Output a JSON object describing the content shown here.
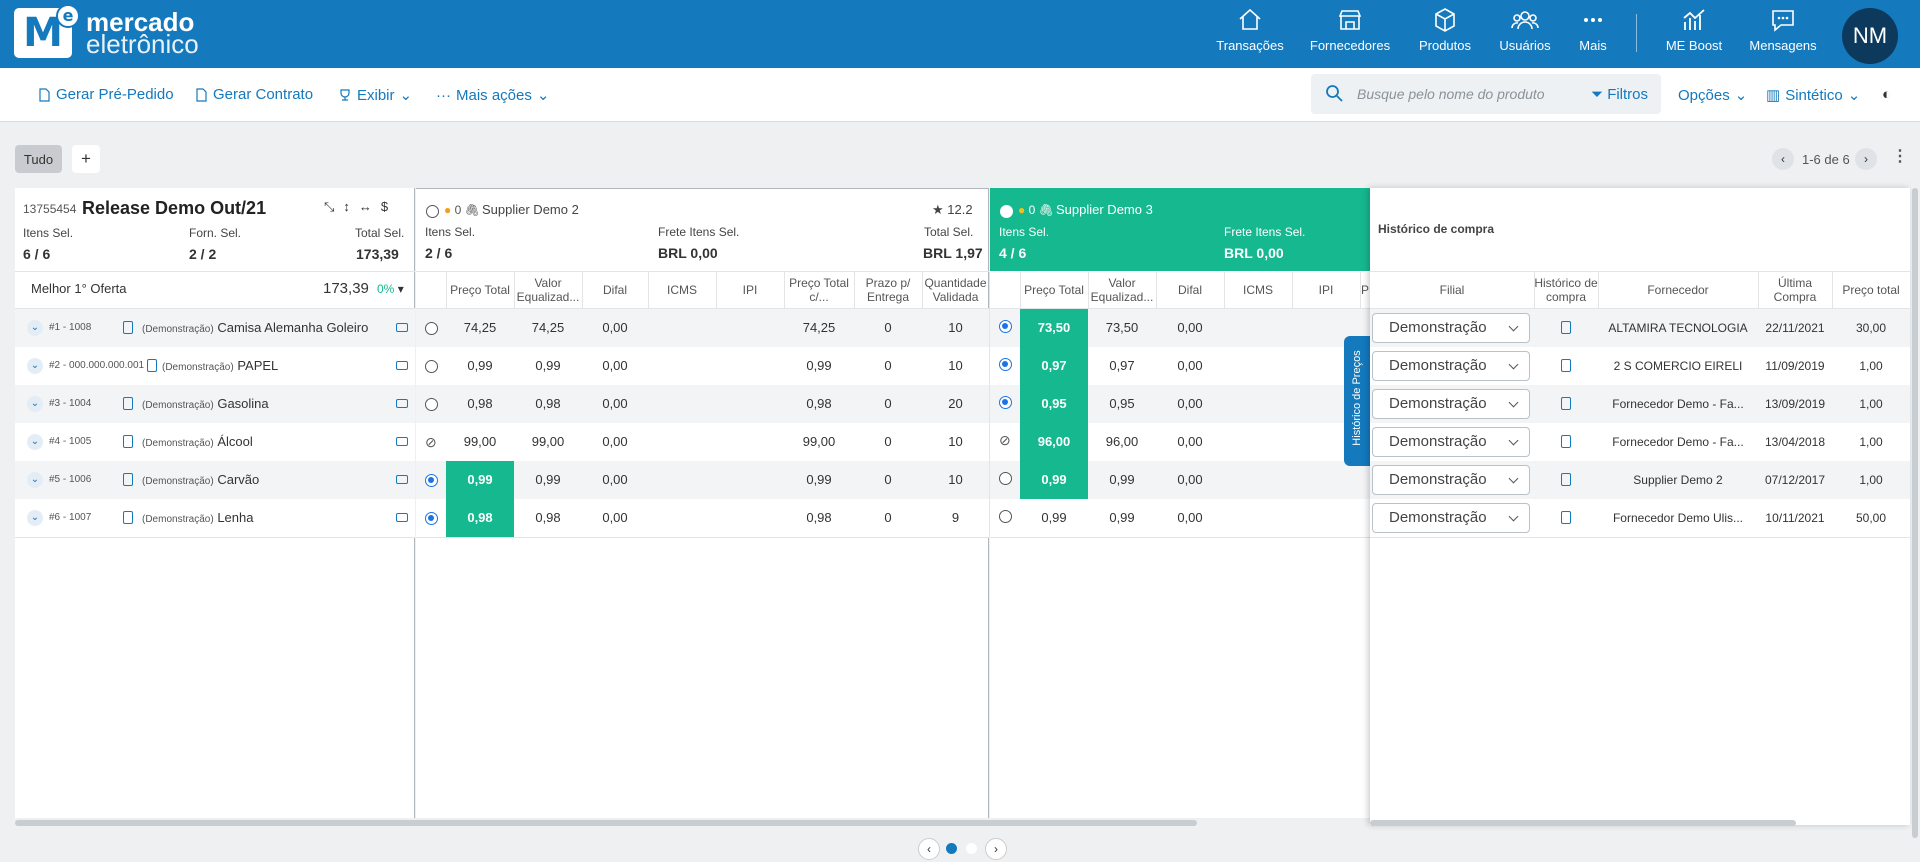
{
  "brand": {
    "line1": "mercado",
    "line2": "eletrônico",
    "mark": "M",
    "mark_e": "e"
  },
  "nav": [
    {
      "label": "Transações",
      "icon": "home-icon"
    },
    {
      "label": "Fornecedores",
      "icon": "store-icon"
    },
    {
      "label": "Produtos",
      "icon": "box-icon"
    },
    {
      "label": "Usuários",
      "icon": "users-icon"
    },
    {
      "label": "Mais",
      "icon": "more-icon"
    },
    {
      "label": "ME Boost",
      "icon": "chart-icon"
    },
    {
      "label": "Mensagens",
      "icon": "message-icon"
    }
  ],
  "user": {
    "initials": "NM"
  },
  "toolbar": {
    "gerar_pre_pedido": "Gerar Pré-Pedido",
    "gerar_contrato": "Gerar Contrato",
    "exibir": "Exibir",
    "mais_acoes": "Mais ações",
    "search_placeholder": "Busque pelo nome do produto",
    "filtros": "Filtros",
    "opcoes": "Opções",
    "sintetico": "Sintético"
  },
  "tabs": {
    "tudo": "Tudo",
    "add": "+"
  },
  "pager": {
    "label": "1-6 de 6"
  },
  "release": {
    "id": "13755454",
    "title": "Release Demo Out/21",
    "itens_label": "Itens Sel.",
    "itens_val": "6 / 6",
    "forn_label": "Forn. Sel.",
    "forn_val": "2 / 2",
    "total_label": "Total Sel.",
    "total_val": "173,39",
    "melhor_label": "Melhor 1° Oferta",
    "melhor_val": "173,39",
    "melhor_pct": "0%"
  },
  "items": [
    {
      "code": "#1 - 1008",
      "demo": "(Demonstração)",
      "name": "Camisa Alemanha Goleiro"
    },
    {
      "code": "#2 - 000.000.000.001",
      "demo": "(Demonstração)",
      "name": "PAPEL"
    },
    {
      "code": "#3 - 1004",
      "demo": "(Demonstração)",
      "name": "Gasolina"
    },
    {
      "code": "#4 - 1005",
      "demo": "(Demonstração)",
      "name": "Álcool"
    },
    {
      "code": "#5 - 1006",
      "demo": "(Demonstração)",
      "name": "Carvão"
    },
    {
      "code": "#6 - 1007",
      "demo": "(Demonstração)",
      "name": "Lenha"
    }
  ],
  "supplier2": {
    "count": "0",
    "name": "Supplier Demo 2",
    "score": "12.2",
    "itens_label": "Itens Sel.",
    "itens_val": "2 / 6",
    "frete_label": "Frete Itens Sel.",
    "frete_val": "BRL 0,00",
    "total_label": "Total Sel.",
    "total_val": "BRL 1,97",
    "cols": [
      "Preço Total",
      "Valor Equalizad...",
      "Difal",
      "ICMS",
      "IPI",
      "Preço Total c/...",
      "Prazo p/ Entrega",
      "Quantidade Validada"
    ],
    "rows": [
      {
        "sel": "off",
        "preco": "74,25",
        "valor": "74,25",
        "difal": "0,00",
        "ptotal": "74,25",
        "prazo": "0",
        "qtd": "10",
        "green": false
      },
      {
        "sel": "off",
        "preco": "0,99",
        "valor": "0,99",
        "difal": "0,00",
        "ptotal": "0,99",
        "prazo": "0",
        "qtd": "10",
        "green": false
      },
      {
        "sel": "off",
        "preco": "0,98",
        "valor": "0,98",
        "difal": "0,00",
        "ptotal": "0,98",
        "prazo": "0",
        "qtd": "20",
        "green": false
      },
      {
        "sel": "block",
        "preco": "99,00",
        "valor": "99,00",
        "difal": "0,00",
        "ptotal": "99,00",
        "prazo": "0",
        "qtd": "10",
        "green": false
      },
      {
        "sel": "on",
        "preco": "0,99",
        "valor": "0,99",
        "difal": "0,00",
        "ptotal": "0,99",
        "prazo": "0",
        "qtd": "10",
        "green": true
      },
      {
        "sel": "on",
        "preco": "0,98",
        "valor": "0,98",
        "difal": "0,00",
        "ptotal": "0,98",
        "prazo": "0",
        "qtd": "9",
        "green": true
      }
    ]
  },
  "supplier3": {
    "count": "0",
    "name": "Supplier Demo 3",
    "itens_label": "Itens Sel.",
    "itens_val": "4 / 6",
    "frete_label": "Frete Itens Sel.",
    "frete_val": "BRL 0,00",
    "cols": [
      "Preço Total",
      "Valor Equalizad...",
      "Difal",
      "ICMS",
      "IPI",
      "P"
    ],
    "rows": [
      {
        "sel": "on",
        "preco": "73,50",
        "valor": "73,50",
        "difal": "0,00",
        "green": true
      },
      {
        "sel": "on",
        "preco": "0,97",
        "valor": "0,97",
        "difal": "0,00",
        "green": true
      },
      {
        "sel": "on",
        "preco": "0,95",
        "valor": "0,95",
        "difal": "0,00",
        "green": true
      },
      {
        "sel": "block",
        "preco": "96,00",
        "valor": "96,00",
        "difal": "0,00",
        "green": true
      },
      {
        "sel": "off",
        "preco": "0,99",
        "valor": "0,99",
        "difal": "0,00",
        "green": true
      },
      {
        "sel": "off",
        "preco": "0,99",
        "valor": "0,99",
        "difal": "0,00",
        "green": false
      }
    ]
  },
  "historico": {
    "title": "Histórico de compra",
    "tab_label": "Histórico de Preços",
    "cols": [
      "Filial",
      "Histórico de compra",
      "Fornecedor",
      "Última Compra",
      "Preço total"
    ],
    "rows": [
      {
        "filial": "Demonstração",
        "fornecedor": "ALTAMIRA TECNOLOGIA",
        "data": "22/11/2021",
        "preco": "30,00"
      },
      {
        "filial": "Demonstração",
        "fornecedor": "2 S COMERCIO EIRELI",
        "data": "11/09/2019",
        "preco": "1,00"
      },
      {
        "filial": "Demonstração",
        "fornecedor": "Fornecedor Demo - Fa...",
        "data": "13/09/2019",
        "preco": "1,00"
      },
      {
        "filial": "Demonstração",
        "fornecedor": "Fornecedor Demo - Fa...",
        "data": "13/04/2018",
        "preco": "1,00"
      },
      {
        "filial": "Demonstração",
        "fornecedor": "Supplier Demo 2",
        "data": "07/12/2017",
        "preco": "1,00"
      },
      {
        "filial": "Demonstração",
        "fornecedor": "Fornecedor Demo Ulis...",
        "data": "10/11/2021",
        "preco": "50,00"
      }
    ]
  },
  "colors": {
    "brand": "#1479bd",
    "green": "#15b88f"
  }
}
